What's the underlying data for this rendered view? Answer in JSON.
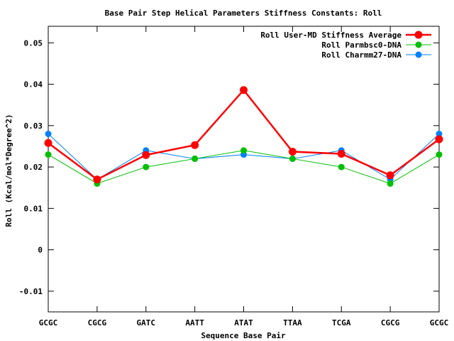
{
  "chart_data": {
    "type": "line",
    "title": "Base Pair Step Helical Parameters Stiffness Constants: Roll",
    "xlabel": "Sequence Base Pair",
    "ylabel": "Roll (Kcal/mol*Degree^2)",
    "categories": [
      "GCGC",
      "CGCG",
      "GATC",
      "AATT",
      "ATAT",
      "TTAA",
      "TCGA",
      "CGCG",
      "GCGC"
    ],
    "ylim": [
      -0.015,
      0.054
    ],
    "yticks": [
      -0.01,
      0,
      0.01,
      0.02,
      0.03,
      0.04,
      0.05
    ],
    "ytick_labels": [
      "-0.01",
      "0",
      "0.01",
      "0.02",
      "0.03",
      "0.04",
      "0.05"
    ],
    "grid": false,
    "legend_position": "top-right",
    "series": [
      {
        "name": "Roll User-MD Stiffness Average",
        "color": "#ff0000",
        "values": [
          0.0258,
          0.017,
          0.0229,
          0.0253,
          0.0386,
          0.0237,
          0.0232,
          0.018,
          0.0267
        ]
      },
      {
        "name": "Roll Parmbsc0-DNA",
        "color": "#00c000",
        "values": [
          0.023,
          0.016,
          0.02,
          0.022,
          0.024,
          0.022,
          0.02,
          0.016,
          0.023
        ]
      },
      {
        "name": "Roll Charmm27-DNA",
        "color": "#0080ff",
        "values": [
          0.028,
          0.017,
          0.024,
          0.022,
          0.023,
          0.022,
          0.024,
          0.017,
          0.028
        ]
      }
    ]
  }
}
